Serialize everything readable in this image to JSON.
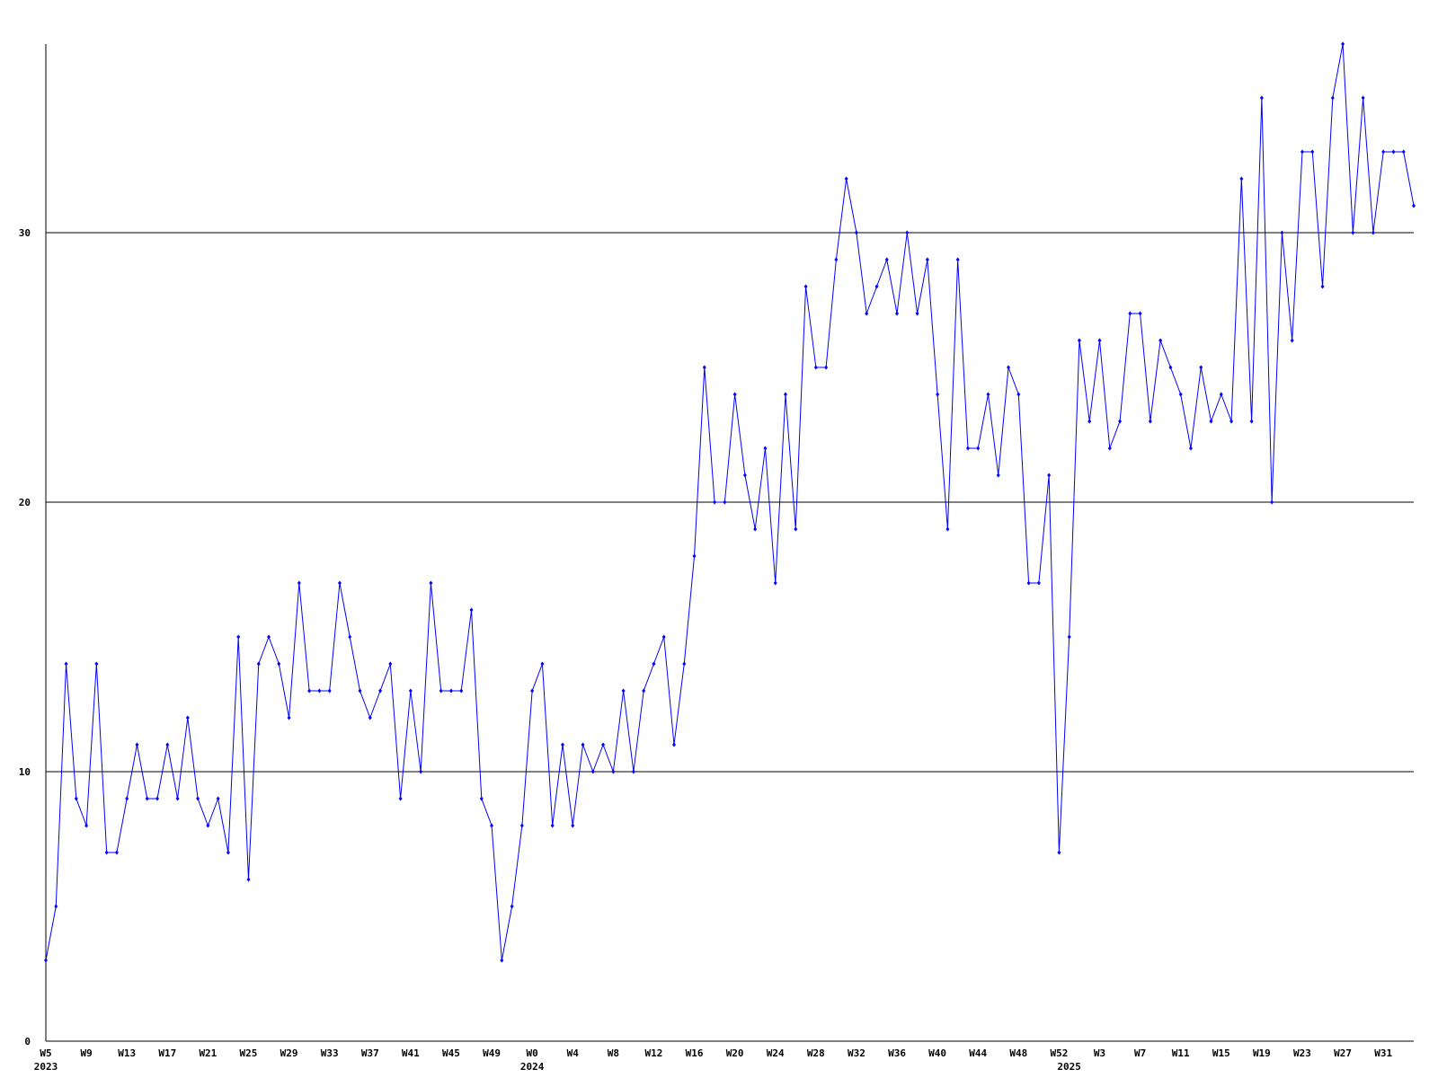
{
  "chart_data": {
    "type": "line",
    "categories": [
      "W5",
      null,
      null,
      null,
      "W9",
      null,
      null,
      null,
      "W13",
      null,
      null,
      null,
      "W17",
      null,
      null,
      null,
      "W21",
      null,
      null,
      null,
      "W25",
      null,
      null,
      null,
      "W29",
      null,
      null,
      null,
      "W33",
      null,
      null,
      null,
      "W37",
      null,
      null,
      null,
      "W41",
      null,
      null,
      null,
      "W45",
      null,
      null,
      null,
      "W49",
      null,
      null,
      null,
      "W0",
      null,
      null,
      null,
      "W4",
      null,
      null,
      null,
      "W8",
      null,
      null,
      null,
      "W12",
      null,
      null,
      null,
      "W16",
      null,
      null,
      null,
      "W20",
      null,
      null,
      null,
      "W24",
      null,
      null,
      null,
      "W28",
      null,
      null,
      null,
      "W32",
      null,
      null,
      null,
      "W36",
      null,
      null,
      null,
      "W40",
      null,
      null,
      null,
      "W44",
      null,
      null,
      null,
      "W48",
      null,
      null,
      null,
      "W52",
      null,
      null,
      null,
      "W3",
      null,
      null,
      null,
      "W7",
      null,
      null,
      null,
      "W11",
      null,
      null,
      null,
      "W15",
      null,
      null,
      null,
      "W19",
      null,
      null,
      null,
      "W23",
      null,
      null,
      null,
      "W27",
      null,
      null,
      null,
      "W31",
      null,
      null,
      null
    ],
    "year_labels": [
      "2023",
      null,
      null,
      null,
      null,
      null,
      null,
      null,
      null,
      null,
      null,
      null,
      null,
      null,
      null,
      null,
      null,
      null,
      null,
      null,
      null,
      null,
      null,
      null,
      null,
      null,
      null,
      null,
      null,
      null,
      null,
      null,
      null,
      null,
      null,
      null,
      null,
      null,
      null,
      null,
      null,
      null,
      null,
      null,
      null,
      null,
      null,
      null,
      "2024",
      null,
      null,
      null,
      null,
      null,
      null,
      null,
      null,
      null,
      null,
      null,
      null,
      null,
      null,
      null,
      null,
      null,
      null,
      null,
      null,
      null,
      null,
      null,
      null,
      null,
      null,
      null,
      null,
      null,
      null,
      null,
      null,
      null,
      null,
      null,
      null,
      null,
      null,
      null,
      null,
      null,
      null,
      null,
      null,
      null,
      null,
      null,
      null,
      null,
      null,
      null,
      null,
      "2025",
      null,
      null,
      null,
      null,
      null,
      null,
      null,
      null,
      null,
      null,
      null,
      null,
      null,
      null,
      null,
      null,
      null,
      null,
      null,
      null,
      null,
      null,
      null,
      null,
      null,
      null,
      null,
      null,
      null,
      null,
      null,
      null,
      null,
      null
    ],
    "series": [
      {
        "color": "#0000ff",
        "values": [
          3,
          5,
          14,
          9,
          8,
          14,
          7,
          7,
          9,
          11,
          9,
          9,
          11,
          9,
          12,
          9,
          8,
          9,
          7,
          15,
          6,
          14,
          15,
          14,
          12,
          17,
          13,
          13,
          13,
          17,
          15,
          13,
          12,
          13,
          14,
          9,
          13,
          10,
          17,
          13,
          13,
          13,
          16,
          9,
          8,
          3,
          5,
          8,
          13,
          14,
          8,
          11,
          8,
          11,
          10,
          11,
          10,
          13,
          10,
          13,
          14,
          15,
          11,
          14,
          18,
          25,
          20,
          20,
          24,
          21,
          19,
          22,
          17,
          24,
          19,
          28,
          25,
          25,
          29,
          32,
          30,
          27,
          28,
          29,
          27,
          30,
          27,
          29,
          24,
          19,
          29,
          22,
          22,
          24,
          21,
          25,
          24,
          17,
          17,
          21,
          7,
          15,
          26,
          23,
          26,
          22,
          23,
          27,
          27,
          23,
          26,
          25,
          24,
          22,
          25,
          23,
          24,
          23,
          32,
          23,
          35,
          20,
          30,
          26,
          33,
          33,
          28,
          35,
          37,
          30,
          35,
          30,
          33,
          33,
          33,
          31
        ]
      }
    ],
    "ylim": [
      0,
      37
    ],
    "yticks": [
      0,
      10,
      20,
      30
    ],
    "grid": true
  }
}
